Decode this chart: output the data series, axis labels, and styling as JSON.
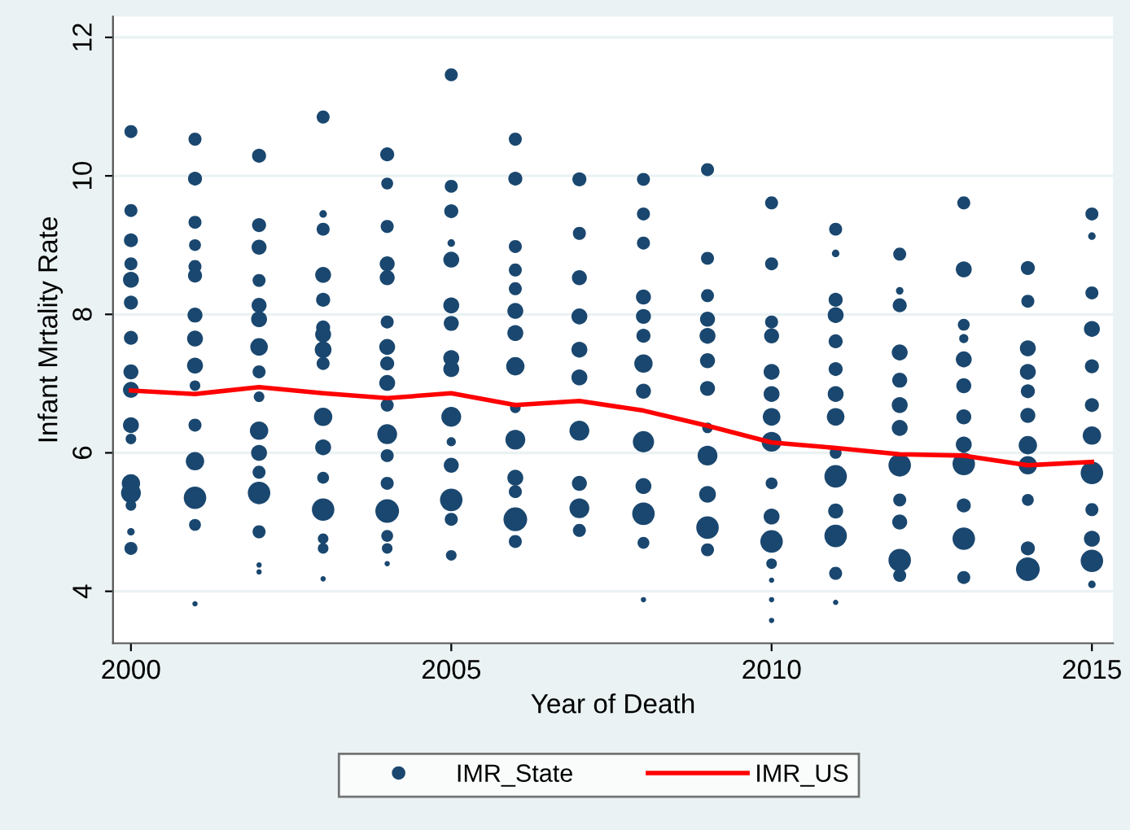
{
  "chart_data": {
    "type": "bubble",
    "xlabel": "Year of Death",
    "ylabel": "Infant Mrtality Rate",
    "xlim": [
      1999.72,
      2015.33
    ],
    "ylim": [
      3.25,
      12.3
    ],
    "xticks": [
      2000,
      2005,
      2010,
      2015
    ],
    "yticks": [
      4,
      6,
      8,
      10,
      12
    ],
    "grid": "y",
    "legend": "bottom",
    "series": [
      {
        "name": "IMR_State",
        "marker": "circle",
        "color": "#1a476f",
        "x": [
          2000,
          2000,
          2000,
          2000,
          2000,
          2000,
          2000,
          2000,
          2000,
          2000,
          2000,
          2000,
          2000,
          2000,
          2000,
          2000,
          2001,
          2001,
          2001,
          2001,
          2001,
          2001,
          2001,
          2001,
          2001,
          2001,
          2001,
          2001,
          2001,
          2001,
          2001,
          2002,
          2002,
          2002,
          2002,
          2002,
          2002,
          2002,
          2002,
          2002,
          2002,
          2002,
          2002,
          2002,
          2002,
          2002,
          2002,
          2003,
          2003,
          2003,
          2003,
          2003,
          2003,
          2003,
          2003,
          2003,
          2003,
          2003,
          2003,
          2003,
          2003,
          2003,
          2003,
          2004,
          2004,
          2004,
          2004,
          2004,
          2004,
          2004,
          2004,
          2004,
          2004,
          2004,
          2004,
          2004,
          2004,
          2004,
          2004,
          2004,
          2005,
          2005,
          2005,
          2005,
          2005,
          2005,
          2005,
          2005,
          2005,
          2005,
          2005,
          2005,
          2005,
          2005,
          2005,
          2006,
          2006,
          2006,
          2006,
          2006,
          2006,
          2006,
          2006,
          2006,
          2006,
          2006,
          2006,
          2006,
          2006,
          2007,
          2007,
          2007,
          2007,
          2007,
          2007,
          2007,
          2007,
          2007,
          2007,
          2008,
          2008,
          2008,
          2008,
          2008,
          2008,
          2008,
          2008,
          2008,
          2008,
          2008,
          2008,
          2008,
          2009,
          2009,
          2009,
          2009,
          2009,
          2009,
          2009,
          2009,
          2009,
          2009,
          2009,
          2009,
          2010,
          2010,
          2010,
          2010,
          2010,
          2010,
          2010,
          2010,
          2010,
          2010,
          2010,
          2010,
          2010,
          2010,
          2010,
          2011,
          2011,
          2011,
          2011,
          2011,
          2011,
          2011,
          2011,
          2011,
          2011,
          2011,
          2011,
          2011,
          2011,
          2012,
          2012,
          2012,
          2012,
          2012,
          2012,
          2012,
          2012,
          2012,
          2012,
          2012,
          2012,
          2013,
          2013,
          2013,
          2013,
          2013,
          2013,
          2013,
          2013,
          2013,
          2013,
          2013,
          2013,
          2014,
          2014,
          2014,
          2014,
          2014,
          2014,
          2014,
          2014,
          2014,
          2014,
          2014,
          2015,
          2015,
          2015,
          2015,
          2015,
          2015,
          2015,
          2015,
          2015,
          2015,
          2015,
          2015
        ],
        "values": [
          10.64,
          9.5,
          9.07,
          8.73,
          8.5,
          8.17,
          7.66,
          7.17,
          6.91,
          6.4,
          6.2,
          5.56,
          5.42,
          5.24,
          4.86,
          4.62,
          10.53,
          9.96,
          9.33,
          9.0,
          8.69,
          8.56,
          7.99,
          7.65,
          7.26,
          6.97,
          6.4,
          5.88,
          5.35,
          4.96,
          3.82,
          10.29,
          9.29,
          8.97,
          8.49,
          8.13,
          7.93,
          7.53,
          7.17,
          6.81,
          6.32,
          6.0,
          5.72,
          5.42,
          4.86,
          4.38,
          4.28,
          10.85,
          9.45,
          9.23,
          8.57,
          8.21,
          7.81,
          7.71,
          7.49,
          7.29,
          6.52,
          6.08,
          5.64,
          5.18,
          4.76,
          4.62,
          4.18,
          10.31,
          9.89,
          9.27,
          8.73,
          8.53,
          7.89,
          7.53,
          7.29,
          7.01,
          6.69,
          6.27,
          5.96,
          5.56,
          5.16,
          4.8,
          4.62,
          4.4,
          11.46,
          9.85,
          9.49,
          9.03,
          8.79,
          8.13,
          7.87,
          7.37,
          7.21,
          6.52,
          6.16,
          5.82,
          5.32,
          5.04,
          4.52,
          10.53,
          9.96,
          8.98,
          8.64,
          8.37,
          8.05,
          7.73,
          7.25,
          6.65,
          6.19,
          5.64,
          5.44,
          5.04,
          4.72,
          9.95,
          9.17,
          8.53,
          7.97,
          7.49,
          7.09,
          6.32,
          5.56,
          5.2,
          4.88,
          9.95,
          9.45,
          9.03,
          8.25,
          7.97,
          7.69,
          7.29,
          6.89,
          6.16,
          5.52,
          5.12,
          4.7,
          3.88,
          10.09,
          8.81,
          8.27,
          7.93,
          7.69,
          7.33,
          6.93,
          6.36,
          5.96,
          5.4,
          4.92,
          4.6,
          9.61,
          8.73,
          7.89,
          7.69,
          7.17,
          6.85,
          6.52,
          6.16,
          5.56,
          5.08,
          4.72,
          4.4,
          4.16,
          3.88,
          3.58,
          9.23,
          8.88,
          8.21,
          7.99,
          7.61,
          7.21,
          6.85,
          6.52,
          6.0,
          5.66,
          5.16,
          4.8,
          4.26,
          3.84,
          8.87,
          8.34,
          8.13,
          7.45,
          7.05,
          6.69,
          6.36,
          5.82,
          5.32,
          5.0,
          4.45,
          4.23,
          9.61,
          8.65,
          7.85,
          7.65,
          7.35,
          6.97,
          6.52,
          6.12,
          5.84,
          5.24,
          4.76,
          4.2,
          8.67,
          8.19,
          7.51,
          7.17,
          6.89,
          6.54,
          6.11,
          5.82,
          5.32,
          4.62,
          4.32,
          9.45,
          9.13,
          8.31,
          7.79,
          7.25,
          6.69,
          6.25,
          5.71,
          5.18,
          4.76,
          4.44,
          4.1
        ],
        "sizes": [
          0.3,
          0.3,
          0.35,
          0.3,
          0.45,
          0.35,
          0.35,
          0.4,
          0.45,
          0.45,
          0.2,
          0.6,
          0.7,
          0.2,
          0.1,
          0.3,
          0.3,
          0.35,
          0.3,
          0.25,
          0.3,
          0.35,
          0.4,
          0.45,
          0.45,
          0.2,
          0.3,
          0.6,
          0.9,
          0.25,
          0.05,
          0.35,
          0.35,
          0.4,
          0.3,
          0.4,
          0.45,
          0.55,
          0.3,
          0.2,
          0.6,
          0.45,
          0.3,
          0.9,
          0.3,
          0.05,
          0.05,
          0.3,
          0.1,
          0.3,
          0.45,
          0.35,
          0.35,
          0.45,
          0.5,
          0.3,
          0.6,
          0.45,
          0.25,
          0.9,
          0.2,
          0.2,
          0.05,
          0.35,
          0.25,
          0.3,
          0.4,
          0.4,
          0.3,
          0.45,
          0.35,
          0.45,
          0.3,
          0.7,
          0.3,
          0.3,
          1.0,
          0.25,
          0.2,
          0.05,
          0.3,
          0.3,
          0.35,
          0.1,
          0.45,
          0.45,
          0.4,
          0.45,
          0.45,
          0.7,
          0.15,
          0.4,
          0.9,
          0.3,
          0.2,
          0.3,
          0.35,
          0.3,
          0.3,
          0.3,
          0.45,
          0.45,
          0.6,
          0.2,
          0.7,
          0.45,
          0.3,
          1.0,
          0.3,
          0.35,
          0.3,
          0.4,
          0.45,
          0.45,
          0.45,
          0.7,
          0.4,
          0.7,
          0.3,
          0.3,
          0.3,
          0.3,
          0.4,
          0.4,
          0.35,
          0.6,
          0.4,
          0.8,
          0.45,
          0.9,
          0.25,
          0.05,
          0.3,
          0.3,
          0.3,
          0.4,
          0.45,
          0.4,
          0.4,
          0.2,
          0.7,
          0.5,
          0.9,
          0.3,
          0.3,
          0.3,
          0.3,
          0.4,
          0.45,
          0.45,
          0.55,
          0.7,
          0.25,
          0.45,
          0.9,
          0.2,
          0.05,
          0.05,
          0.05,
          0.3,
          0.1,
          0.35,
          0.45,
          0.35,
          0.35,
          0.45,
          0.55,
          0.25,
          0.9,
          0.4,
          0.9,
          0.3,
          0.05,
          0.3,
          0.1,
          0.35,
          0.45,
          0.4,
          0.45,
          0.45,
          0.9,
          0.3,
          0.4,
          0.9,
          0.3,
          0.3,
          0.45,
          0.25,
          0.15,
          0.45,
          0.4,
          0.4,
          0.45,
          0.9,
          0.35,
          0.9,
          0.3,
          0.35,
          0.3,
          0.45,
          0.45,
          0.35,
          0.4,
          0.6,
          0.6,
          0.25,
          0.35,
          1.0,
          0.3,
          0.1,
          0.3,
          0.45,
          0.35,
          0.35,
          0.6,
          0.9,
          0.3,
          0.45,
          0.9,
          0.1
        ]
      },
      {
        "name": "IMR_US",
        "type": "line",
        "color": "#ff0000",
        "line_style": "solid",
        "x": [
          2000,
          2001,
          2002,
          2003,
          2004,
          2005,
          2006,
          2007,
          2008,
          2009,
          2010,
          2011,
          2012,
          2013,
          2014,
          2015
        ],
        "values": [
          6.9,
          6.85,
          6.95,
          6.86,
          6.79,
          6.86,
          6.69,
          6.75,
          6.61,
          6.39,
          6.15,
          6.07,
          5.98,
          5.96,
          5.82,
          5.87
        ]
      }
    ]
  }
}
